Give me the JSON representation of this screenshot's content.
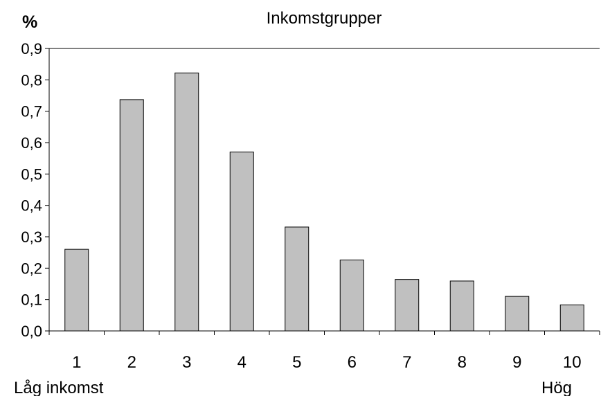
{
  "chart_data": {
    "type": "bar",
    "title": "Inkomstgrupper",
    "ylabel": "%",
    "xlabel": "",
    "categories": [
      "1",
      "2",
      "3",
      "4",
      "5",
      "6",
      "7",
      "8",
      "9",
      "10"
    ],
    "values": [
      0.26,
      0.737,
      0.822,
      0.57,
      0.331,
      0.226,
      0.164,
      0.159,
      0.11,
      0.083
    ],
    "yticks": [
      "0,0",
      "0,1",
      "0,2",
      "0,3",
      "0,4",
      "0,5",
      "0,6",
      "0,7",
      "0,8",
      "0,9"
    ],
    "ylim": [
      0,
      0.9
    ],
    "grid": false,
    "annotations": {
      "low": "Låg inkomst",
      "high": "Hög"
    },
    "colors": {
      "bar_fill": "#c0c0c0",
      "bar_stroke": "#000000"
    }
  }
}
